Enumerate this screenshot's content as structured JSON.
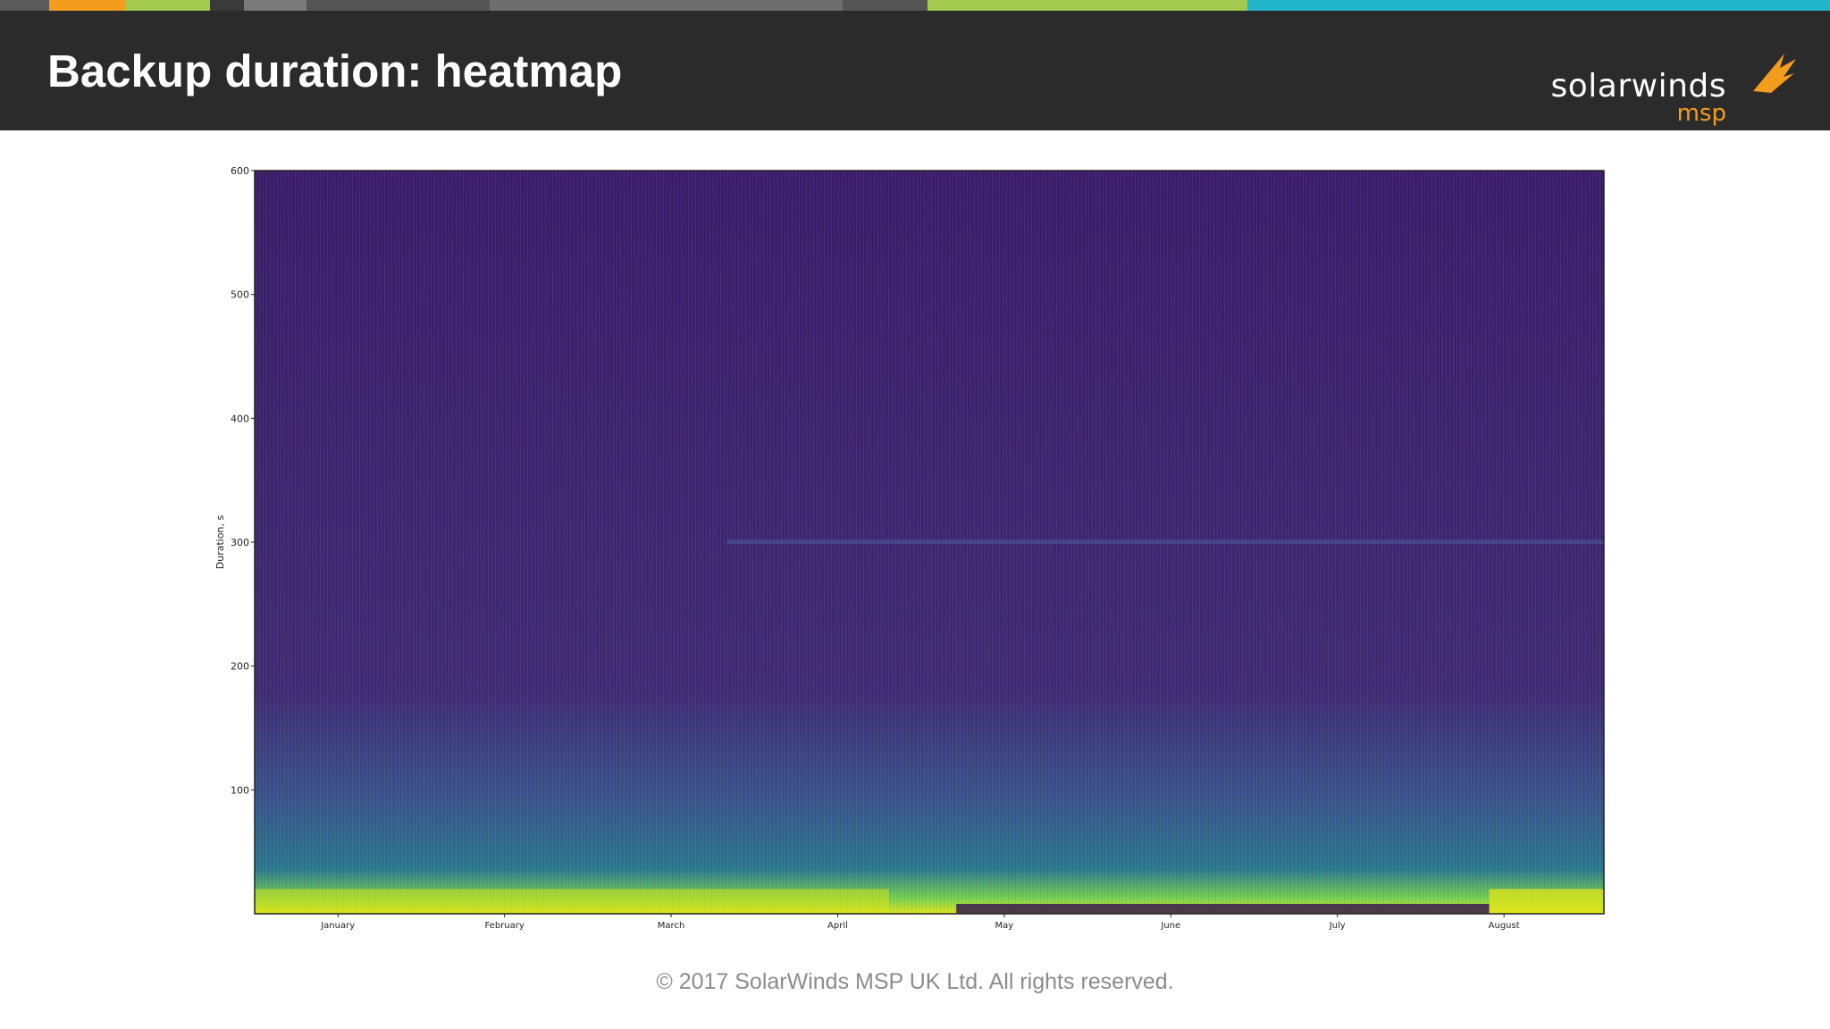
{
  "slide": {
    "title": "Backup duration: heatmap",
    "footer": "© 2017 SolarWinds MSP UK Ltd.  All rights reserved.",
    "stripe_colors": [
      "#5a5a5a",
      "#f39c1e",
      "#a4c94f",
      "#3a3a3a",
      "#7a7a7a",
      "#555555",
      "#6e6e6e",
      "#555555",
      "#a4c94f",
      "#22b5cc"
    ]
  },
  "logo": {
    "word": "solarwinds",
    "sub": "msp",
    "accent": "#f39c1e"
  },
  "chart_data": {
    "type": "heatmap",
    "title": "",
    "xlabel": "",
    "ylabel": "Duration, s",
    "x_categories": [
      "January",
      "February",
      "March",
      "April",
      "May",
      "June",
      "July",
      "August"
    ],
    "y_ticks": [
      100,
      200,
      300,
      400,
      500,
      600
    ],
    "ylim": [
      0,
      600
    ],
    "colormap": "viridis",
    "colors": {
      "low": "#3b1f6e",
      "mid": "#2a788e",
      "high": "#e0e51a"
    },
    "grid": false,
    "description_values": {
      "high_density_band_s": [
        0,
        20
      ],
      "faint_band_s": 300,
      "gap_period": [
        "July",
        "August"
      ]
    }
  }
}
